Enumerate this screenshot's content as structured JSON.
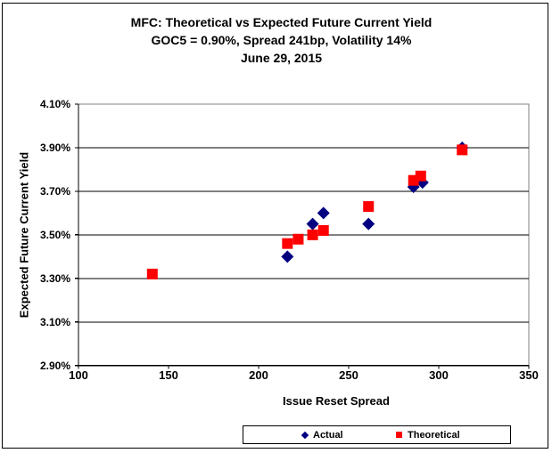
{
  "chart_data": {
    "type": "scatter",
    "title_lines": [
      "MFC: Theoretical vs Expected Future Current Yield",
      "GOC5 = 0.90%, Spread 241bp, Volatility 14%",
      "June 29, 2015"
    ],
    "xlabel": "Issue Reset Spread",
    "ylabel": "Expected Future Current Yield",
    "xlim": [
      100,
      350
    ],
    "ylim": [
      2.9,
      4.1
    ],
    "x_ticks": [
      100,
      150,
      200,
      250,
      300,
      350
    ],
    "x_tick_labels": [
      "100",
      "150",
      "200",
      "250",
      "300",
      "350"
    ],
    "y_ticks": [
      4.1,
      3.9,
      3.7,
      3.5,
      3.3,
      3.1,
      2.9
    ],
    "y_tick_labels": [
      "4.10%",
      "3.90%",
      "3.70%",
      "3.50%",
      "3.30%",
      "3.10%",
      "2.90%"
    ],
    "grid": true,
    "legend_position": "bottom",
    "series": [
      {
        "name": "Actual",
        "marker": "diamond",
        "color": "#000080",
        "points": [
          [
            216,
            3.4
          ],
          [
            230,
            3.55
          ],
          [
            236,
            3.6
          ],
          [
            261,
            3.55
          ],
          [
            286,
            3.72
          ],
          [
            291,
            3.74
          ],
          [
            313,
            3.9
          ]
        ]
      },
      {
        "name": "Theoretical",
        "marker": "square",
        "color": "#FF0000",
        "points": [
          [
            141,
            3.32
          ],
          [
            216,
            3.46
          ],
          [
            222,
            3.48
          ],
          [
            230,
            3.5
          ],
          [
            236,
            3.52
          ],
          [
            261,
            3.63
          ],
          [
            286,
            3.75
          ],
          [
            290,
            3.77
          ],
          [
            313,
            3.89
          ]
        ]
      }
    ],
    "colors": {
      "gridline": "#000000",
      "axis": "#000000",
      "plot_border": "#808080"
    }
  }
}
